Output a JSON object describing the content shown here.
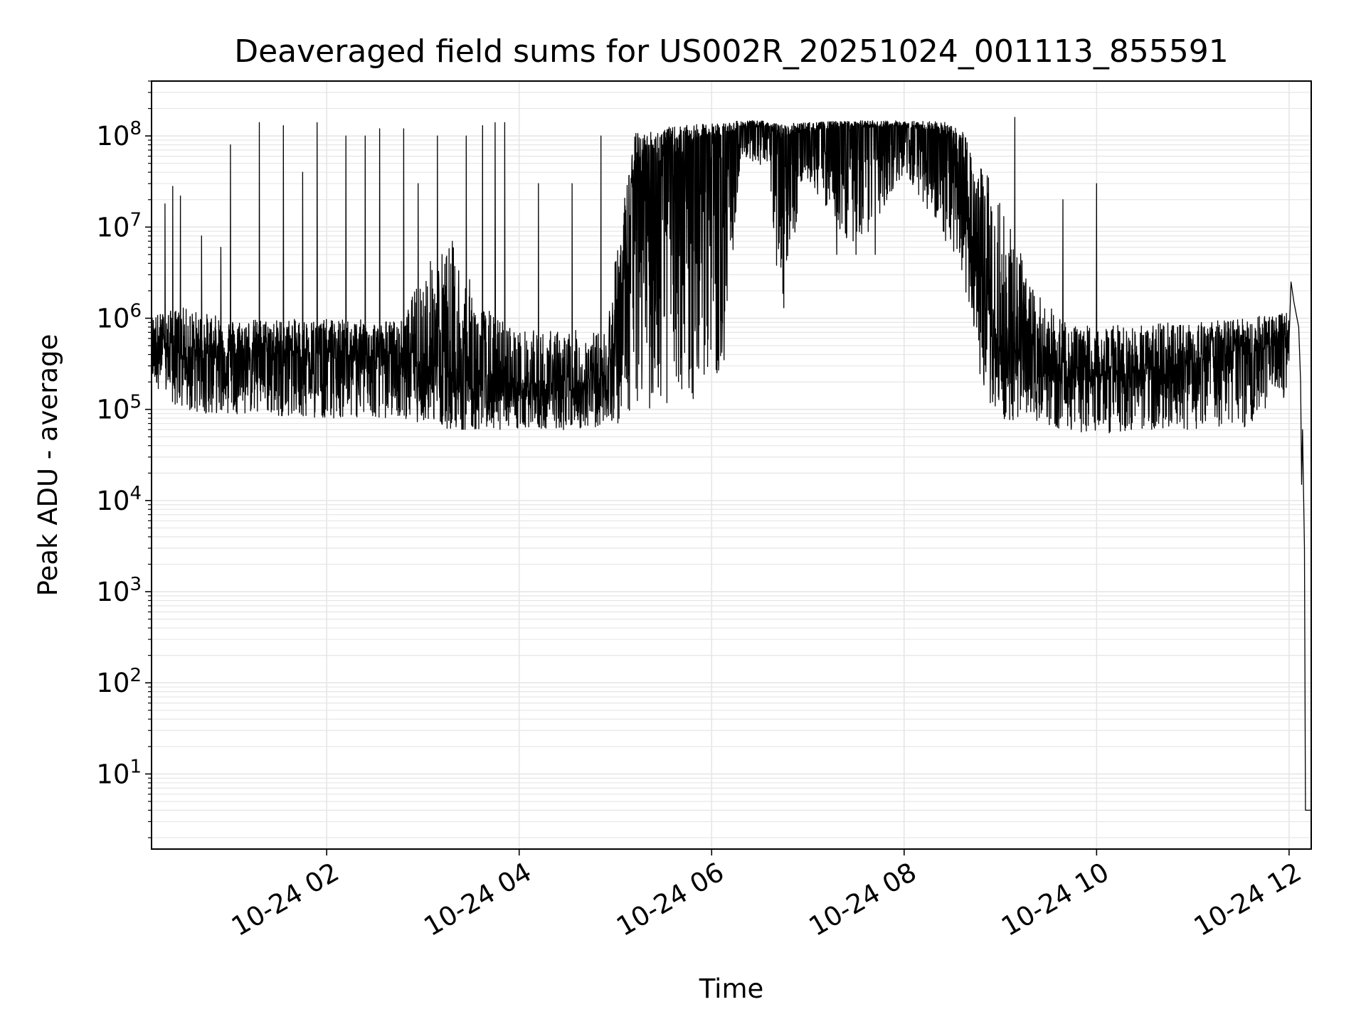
{
  "chart_data": {
    "type": "line",
    "title": "Deaveraged field sums for US002R_20251024_001113_855591",
    "xlabel": "Time",
    "ylabel": "Peak ADU - average",
    "yscale": "log",
    "ylim": [
      1.5,
      400000000
    ],
    "xlim_hours": [
      0.18,
      12.23
    ],
    "grid": true,
    "line_color": "#000000",
    "grid_color": "#e6e6e6",
    "x_ticks": [
      {
        "hour": 2,
        "label": "10-24 02"
      },
      {
        "hour": 4,
        "label": "10-24 04"
      },
      {
        "hour": 6,
        "label": "10-24 06"
      },
      {
        "hour": 8,
        "label": "10-24 08"
      },
      {
        "hour": 10,
        "label": "10-24 10"
      },
      {
        "hour": 12,
        "label": "10-24 12"
      }
    ],
    "y_ticks": [
      {
        "exp": 1,
        "base": "10",
        "sup": "1"
      },
      {
        "exp": 2,
        "base": "10",
        "sup": "2"
      },
      {
        "exp": 3,
        "base": "10",
        "sup": "3"
      },
      {
        "exp": 4,
        "base": "10",
        "sup": "4"
      },
      {
        "exp": 5,
        "base": "10",
        "sup": "5"
      },
      {
        "exp": 6,
        "base": "10",
        "sup": "6"
      },
      {
        "exp": 7,
        "base": "10",
        "sup": "7"
      },
      {
        "exp": 8,
        "base": "10",
        "sup": "8"
      }
    ],
    "series": [
      {
        "name": "peak_adu_minus_average",
        "envelope": [
          {
            "hour": 0.18,
            "low": 200000,
            "mid": 700000,
            "high": 1300000
          },
          {
            "hour": 0.5,
            "low": 90000,
            "mid": 500000,
            "high": 2000000
          },
          {
            "hour": 1.0,
            "low": 90000,
            "mid": 500000,
            "high": 1300000
          },
          {
            "hour": 2.0,
            "low": 80000,
            "mid": 500000,
            "high": 1300000
          },
          {
            "hour": 2.8,
            "low": 80000,
            "mid": 450000,
            "high": 1300000
          },
          {
            "hour": 3.0,
            "low": 70000,
            "mid": 400000,
            "high": 10000000
          },
          {
            "hour": 3.3,
            "low": 60000,
            "mid": 300000,
            "high": 30000000
          },
          {
            "hour": 3.6,
            "low": 60000,
            "mid": 250000,
            "high": 3000000
          },
          {
            "hour": 4.0,
            "low": 60000,
            "mid": 200000,
            "high": 1300000
          },
          {
            "hour": 4.6,
            "low": 60000,
            "mid": 200000,
            "high": 1300000
          },
          {
            "hour": 4.9,
            "low": 65000,
            "mid": 300000,
            "high": 1000000
          },
          {
            "hour": 5.05,
            "low": 70000,
            "mid": 2000000,
            "high": 25000000
          },
          {
            "hour": 5.2,
            "low": 100000,
            "mid": 50000000,
            "high": 150000000
          },
          {
            "hour": 5.6,
            "low": 100000,
            "mid": 80000000,
            "high": 155000000
          },
          {
            "hour": 5.95,
            "low": 150000,
            "mid": 100000000,
            "high": 155000000
          },
          {
            "hour": 6.15,
            "low": 300000,
            "mid": 110000000,
            "high": 155000000
          },
          {
            "hour": 6.3,
            "low": 60000000,
            "mid": 130000000,
            "high": 155000000
          },
          {
            "hour": 6.6,
            "low": 40000000,
            "mid": 130000000,
            "high": 155000000
          },
          {
            "hour": 6.7,
            "low": 1200000,
            "mid": 100000000,
            "high": 150000000
          },
          {
            "hour": 6.8,
            "low": 2000000,
            "mid": 110000000,
            "high": 150000000
          },
          {
            "hour": 6.95,
            "low": 40000000,
            "mid": 120000000,
            "high": 150000000
          },
          {
            "hour": 7.5,
            "low": 5000000,
            "mid": 130000000,
            "high": 155000000
          },
          {
            "hour": 8.0,
            "low": 40000000,
            "mid": 130000000,
            "high": 155000000
          },
          {
            "hour": 8.4,
            "low": 8000000,
            "mid": 120000000,
            "high": 155000000
          },
          {
            "hour": 8.6,
            "low": 3000000,
            "mid": 60000000,
            "high": 160000000
          },
          {
            "hour": 8.8,
            "low": 150000,
            "mid": 3000000,
            "high": 160000000
          },
          {
            "hour": 9.0,
            "low": 80000,
            "mid": 800000,
            "high": 160000000
          },
          {
            "hour": 9.3,
            "low": 70000,
            "mid": 400000,
            "high": 5000000
          },
          {
            "hour": 9.7,
            "low": 60000,
            "mid": 300000,
            "high": 1300000
          },
          {
            "hour": 10.0,
            "low": 50000,
            "mid": 300000,
            "high": 1300000
          },
          {
            "hour": 10.4,
            "low": 60000,
            "mid": 300000,
            "high": 1300000
          },
          {
            "hour": 10.8,
            "low": 60000,
            "mid": 400000,
            "high": 1300000
          },
          {
            "hour": 11.5,
            "low": 60000,
            "mid": 500000,
            "high": 1300000
          },
          {
            "hour": 12.0,
            "low": 150000,
            "mid": 700000,
            "high": 1500000
          }
        ],
        "spikes": [
          {
            "hour": 0.32,
            "value": 18000000
          },
          {
            "hour": 0.4,
            "value": 28000000
          },
          {
            "hour": 0.48,
            "value": 22000000
          },
          {
            "hour": 0.7,
            "value": 8000000
          },
          {
            "hour": 0.9,
            "value": 6000000
          },
          {
            "hour": 1.0,
            "value": 80000000
          },
          {
            "hour": 1.3,
            "value": 140000000
          },
          {
            "hour": 1.55,
            "value": 130000000
          },
          {
            "hour": 1.75,
            "value": 40000000
          },
          {
            "hour": 1.9,
            "value": 140000000
          },
          {
            "hour": 2.2,
            "value": 100000000
          },
          {
            "hour": 2.4,
            "value": 100000000
          },
          {
            "hour": 2.55,
            "value": 120000000
          },
          {
            "hour": 2.8,
            "value": 120000000
          },
          {
            "hour": 2.95,
            "value": 30000000
          },
          {
            "hour": 3.15,
            "value": 100000000
          },
          {
            "hour": 3.45,
            "value": 100000000
          },
          {
            "hour": 3.62,
            "value": 130000000
          },
          {
            "hour": 3.75,
            "value": 140000000
          },
          {
            "hour": 3.85,
            "value": 140000000
          },
          {
            "hour": 4.2,
            "value": 30000000
          },
          {
            "hour": 4.55,
            "value": 30000000
          },
          {
            "hour": 4.85,
            "value": 100000000
          },
          {
            "hour": 6.75,
            "value": 1300000
          },
          {
            "hour": 7.3,
            "value": 5000000
          },
          {
            "hour": 7.5,
            "value": 5000000
          },
          {
            "hour": 7.7,
            "value": 5000000
          },
          {
            "hour": 9.15,
            "value": 160000000
          },
          {
            "hour": 9.65,
            "value": 20000000
          },
          {
            "hour": 10.0,
            "value": 30000000
          }
        ],
        "tail": [
          {
            "hour": 12.02,
            "value": 2500000
          },
          {
            "hour": 12.05,
            "value": 1500000
          },
          {
            "hour": 12.1,
            "value": 800000
          },
          {
            "hour": 12.12,
            "value": 200000
          },
          {
            "hour": 12.13,
            "value": 15000
          },
          {
            "hour": 12.14,
            "value": 60000
          },
          {
            "hour": 12.16,
            "value": 3000
          },
          {
            "hour": 12.17,
            "value": 4
          },
          {
            "hour": 12.23,
            "value": 4
          }
        ]
      }
    ]
  }
}
